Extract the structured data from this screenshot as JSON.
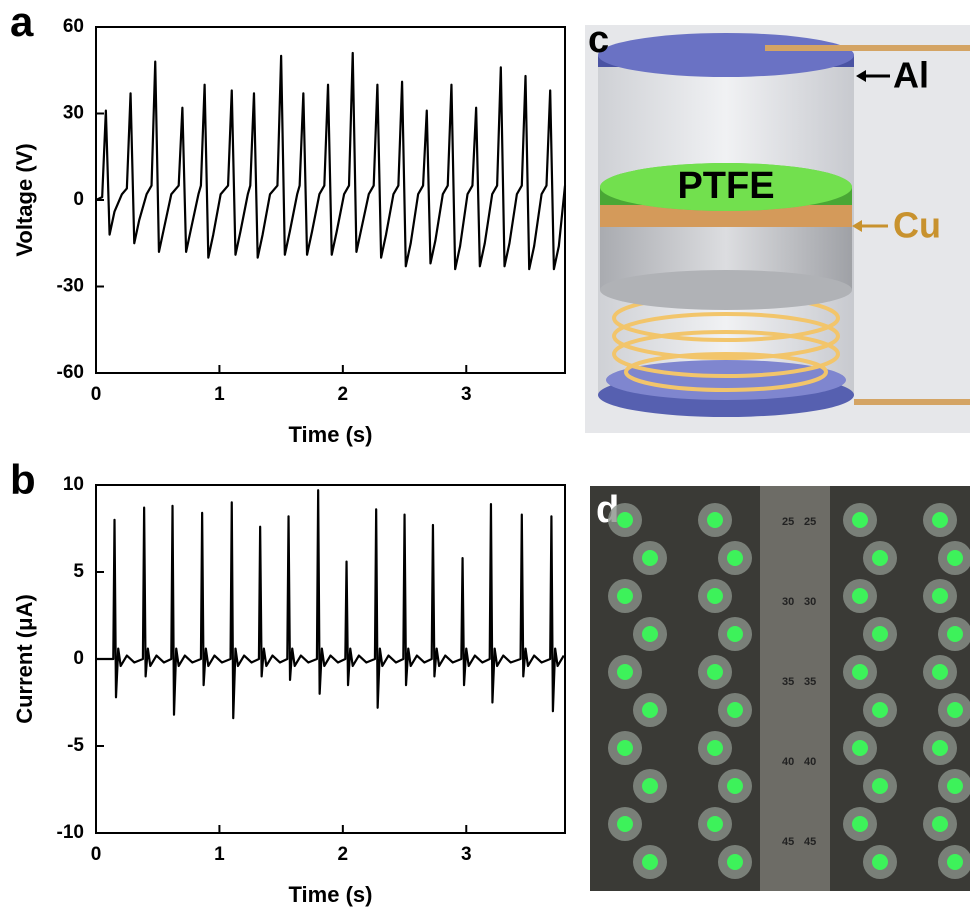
{
  "chart_data": [
    {
      "type": "line",
      "panel_label": "a",
      "xlabel": "Time (s)",
      "ylabel": "Voltage (V)",
      "color": "#000000",
      "xlim": [
        0,
        3.8
      ],
      "ylim": [
        -60,
        60
      ],
      "xticks": [
        0,
        1,
        2,
        3
      ],
      "yticks": [
        -60,
        -30,
        0,
        30,
        60
      ],
      "x": [
        0,
        0.05,
        0.08,
        0.11,
        0.15,
        0.21,
        0.25,
        0.28,
        0.31,
        0.35,
        0.41,
        0.45,
        0.48,
        0.51,
        0.55,
        0.61,
        0.67,
        0.7,
        0.73,
        0.77,
        0.83,
        0.85,
        0.88,
        0.91,
        0.95,
        1.01,
        1.07,
        1.1,
        1.13,
        1.17,
        1.23,
        1.25,
        1.28,
        1.31,
        1.35,
        1.41,
        1.47,
        1.5,
        1.53,
        1.57,
        1.63,
        1.65,
        1.68,
        1.71,
        1.75,
        1.81,
        1.85,
        1.88,
        1.91,
        1.95,
        2.01,
        2.05,
        2.08,
        2.11,
        2.15,
        2.21,
        2.25,
        2.28,
        2.31,
        2.35,
        2.41,
        2.45,
        2.48,
        2.51,
        2.55,
        2.61,
        2.65,
        2.68,
        2.71,
        2.75,
        2.81,
        2.85,
        2.88,
        2.91,
        2.95,
        3.01,
        3.05,
        3.08,
        3.11,
        3.15,
        3.21,
        3.25,
        3.28,
        3.31,
        3.35,
        3.41,
        3.45,
        3.48,
        3.51,
        3.55,
        3.61,
        3.65,
        3.68,
        3.71,
        3.75,
        3.8
      ],
      "values": [
        0,
        1,
        31,
        -12,
        -4,
        2,
        4,
        37,
        -15,
        -7,
        2,
        5,
        48,
        -18,
        -10,
        2,
        5,
        32,
        -18,
        -10,
        2,
        5,
        40,
        -20,
        -12,
        2,
        5,
        38,
        -19,
        -11,
        2,
        5,
        37,
        -20,
        -12,
        2,
        5,
        50,
        -19,
        -11,
        2,
        5,
        37,
        -19,
        -11,
        2,
        5,
        40,
        -19,
        -11,
        2,
        5,
        51,
        -18,
        -10,
        2,
        5,
        40,
        -20,
        -12,
        2,
        5,
        41,
        -23,
        -15,
        2,
        5,
        31,
        -22,
        -14,
        2,
        5,
        40,
        -24,
        -16,
        2,
        5,
        32,
        -23,
        -15,
        2,
        5,
        46,
        -23,
        -15,
        2,
        5,
        43,
        -24,
        -16,
        2,
        5,
        38,
        -24,
        -16,
        5
      ]
    },
    {
      "type": "line",
      "panel_label": "b",
      "xlabel": "Time (s)",
      "ylabel": "Current (μA)",
      "color": "#000000",
      "xlim": [
        0,
        3.8
      ],
      "ylim": [
        -10,
        10
      ],
      "xticks": [
        0,
        1,
        2,
        3
      ],
      "yticks": [
        -10,
        -5,
        0,
        5,
        10
      ],
      "x": [
        0,
        0.14,
        0.15,
        0.162,
        0.18,
        0.2,
        0.25,
        0.31,
        0.38,
        0.39,
        0.402,
        0.42,
        0.44,
        0.49,
        0.55,
        0.61,
        0.62,
        0.632,
        0.65,
        0.67,
        0.72,
        0.78,
        0.85,
        0.86,
        0.872,
        0.89,
        0.91,
        0.96,
        1.02,
        1.09,
        1.1,
        1.112,
        1.13,
        1.15,
        1.2,
        1.26,
        1.32,
        1.33,
        1.342,
        1.36,
        1.38,
        1.43,
        1.49,
        1.55,
        1.56,
        1.572,
        1.59,
        1.61,
        1.66,
        1.72,
        1.79,
        1.8,
        1.812,
        1.83,
        1.85,
        1.9,
        1.96,
        2.02,
        2.03,
        2.042,
        2.06,
        2.08,
        2.13,
        2.19,
        2.26,
        2.27,
        2.282,
        2.3,
        2.32,
        2.37,
        2.43,
        2.49,
        2.5,
        2.512,
        2.53,
        2.55,
        2.6,
        2.66,
        2.72,
        2.73,
        2.742,
        2.76,
        2.78,
        2.83,
        2.89,
        2.96,
        2.97,
        2.982,
        3,
        3.02,
        3.07,
        3.13,
        3.19,
        3.2,
        3.212,
        3.23,
        3.25,
        3.3,
        3.36,
        3.44,
        3.45,
        3.462,
        3.48,
        3.5,
        3.55,
        3.61,
        3.68,
        3.69,
        3.702,
        3.72,
        3.74,
        3.79
      ],
      "values": [
        0,
        0,
        8,
        -2.2,
        0.6,
        -0.4,
        0.2,
        -0.2,
        0,
        8.7,
        -1,
        0.6,
        -0.4,
        0.2,
        -0.2,
        0,
        8.8,
        -3.2,
        0.6,
        -0.4,
        0.2,
        -0.2,
        0,
        8.4,
        -1.5,
        0.6,
        -0.4,
        0.2,
        -0.2,
        0,
        9,
        -3.4,
        0.6,
        -0.4,
        0.2,
        -0.2,
        0,
        7.6,
        -1,
        0.6,
        -0.4,
        0.2,
        -0.2,
        0,
        8.2,
        -1.2,
        0.6,
        -0.4,
        0.2,
        -0.2,
        0,
        9.7,
        -2,
        0.6,
        -0.4,
        0.2,
        -0.2,
        0,
        5.6,
        -1.5,
        0.6,
        -0.4,
        0.2,
        -0.2,
        0,
        8.6,
        -2.8,
        0.6,
        -0.4,
        0.2,
        -0.2,
        0,
        8.3,
        -1.5,
        0.6,
        -0.4,
        0.2,
        -0.2,
        0,
        7.7,
        -1,
        0.6,
        -0.4,
        0.2,
        -0.2,
        0,
        5.8,
        -1.5,
        0.6,
        -0.4,
        0.2,
        -0.2,
        0,
        8.9,
        -2.5,
        0.6,
        -0.4,
        0.2,
        -0.2,
        0,
        8.3,
        -1,
        0.6,
        -0.4,
        0.2,
        -0.2,
        0,
        8.2,
        -3,
        0.6,
        -0.4,
        0.2
      ]
    }
  ],
  "diagram": {
    "panel_label": "c",
    "labels": [
      "PTFE",
      "Al",
      "Cu"
    ]
  },
  "photo": {
    "panel_label": "d",
    "board_numbers": [
      "25",
      "30",
      "35",
      "40",
      "45"
    ]
  }
}
